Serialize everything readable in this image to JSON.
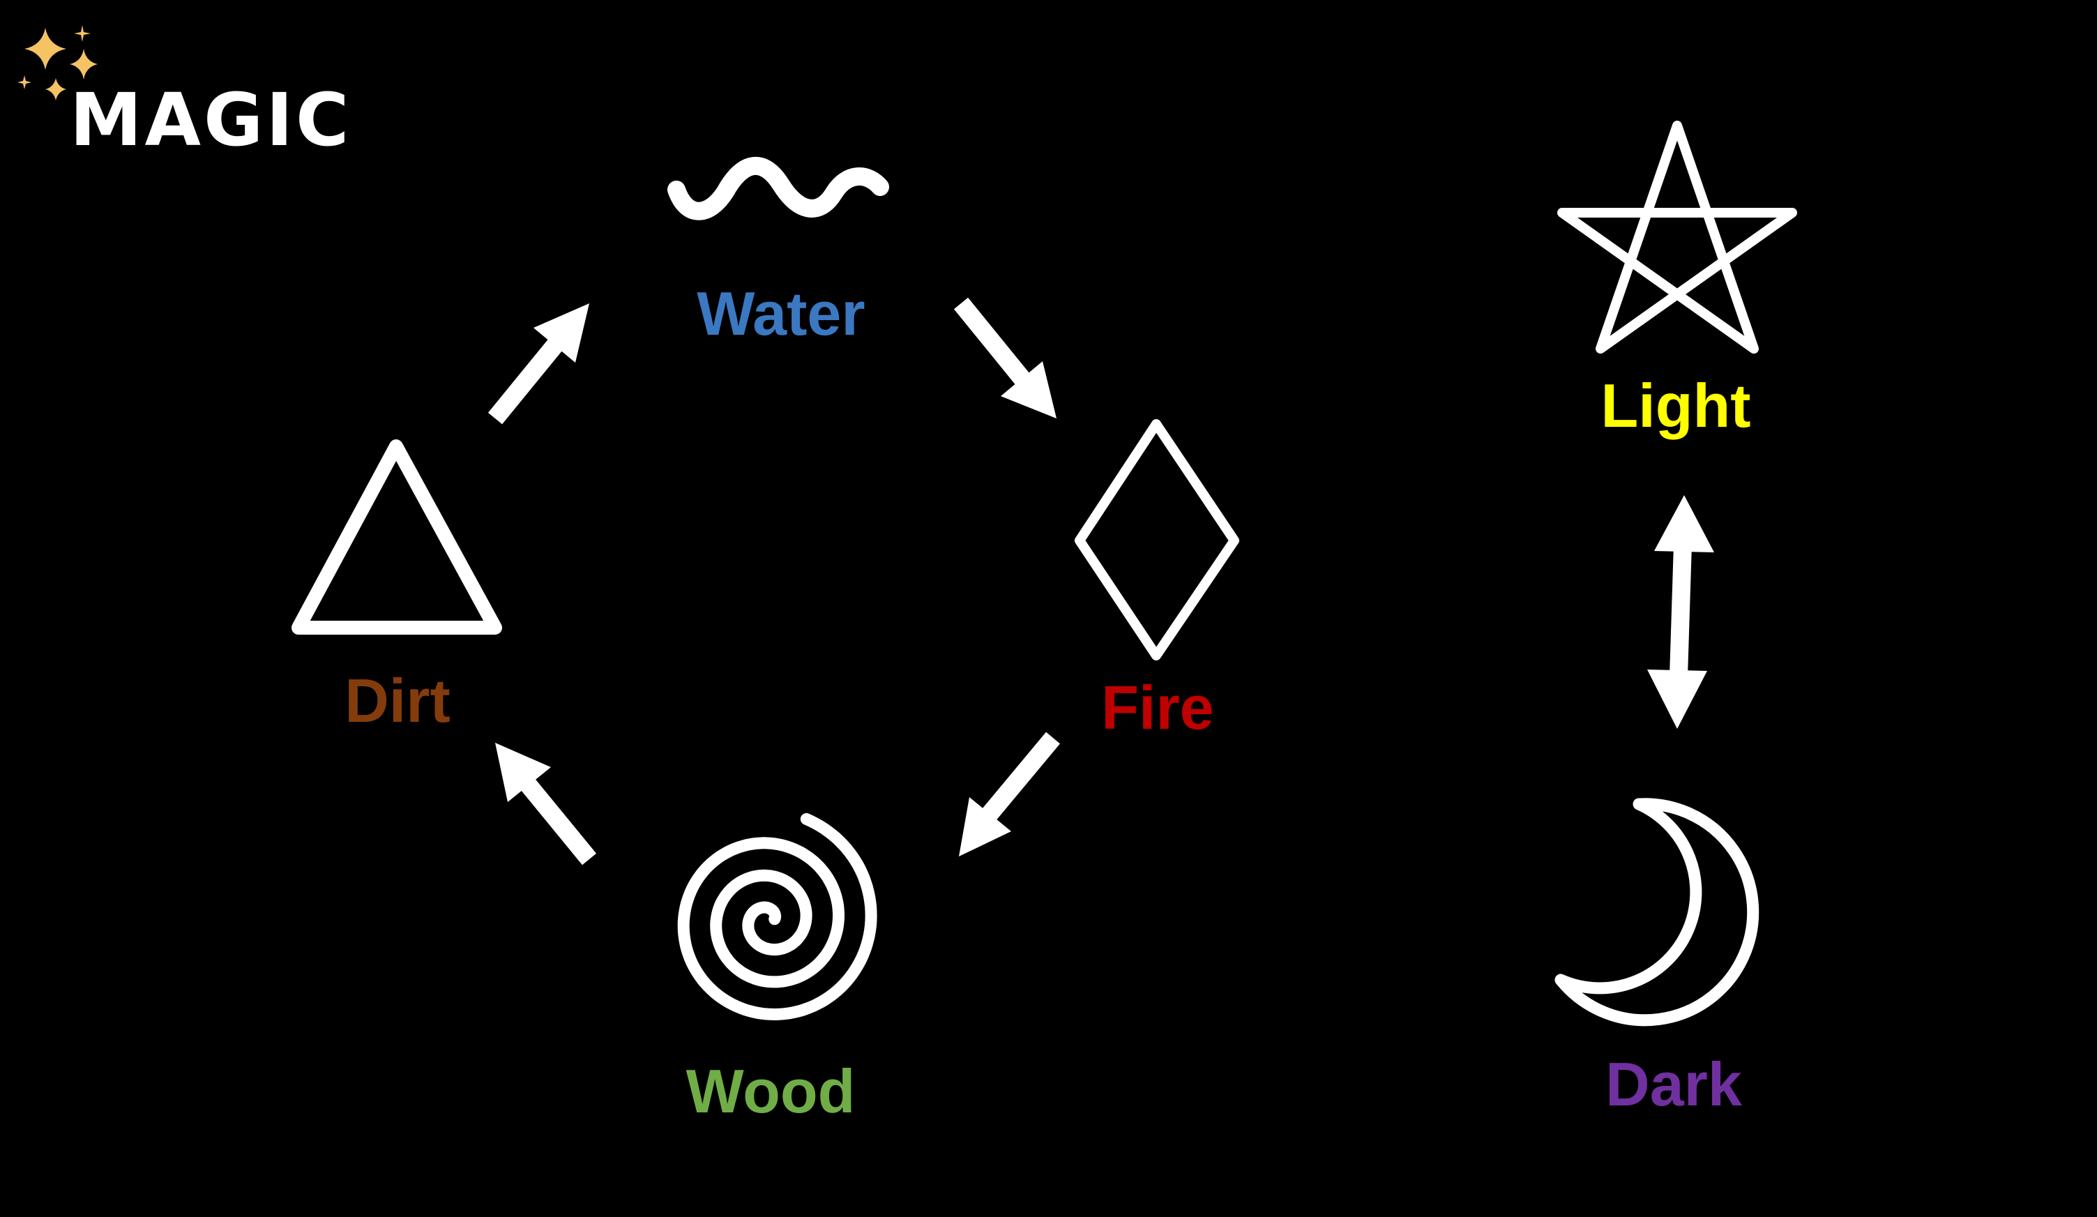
{
  "title": "MAGIC",
  "colors": {
    "background": "#000000",
    "symbol": "#ffffff",
    "sparkle": "#f5c264",
    "water": "#3a78c2",
    "fire": "#c00000",
    "wood": "#70ad47",
    "dirt": "#843c0c",
    "light": "#ffff00",
    "dark": "#7030a0"
  },
  "elements": {
    "water": {
      "label": "Water",
      "icon": "wave-icon"
    },
    "fire": {
      "label": "Fire",
      "icon": "diamond-icon"
    },
    "wood": {
      "label": "Wood",
      "icon": "spiral-icon"
    },
    "dirt": {
      "label": "Dirt",
      "icon": "triangle-icon"
    },
    "light": {
      "label": "Light",
      "icon": "pentagram-icon"
    },
    "dark": {
      "label": "Dark",
      "icon": "crescent-moon-icon"
    }
  },
  "cycle": [
    "Water",
    "Fire",
    "Wood",
    "Dirt"
  ],
  "opposition": [
    "Light",
    "Dark"
  ]
}
